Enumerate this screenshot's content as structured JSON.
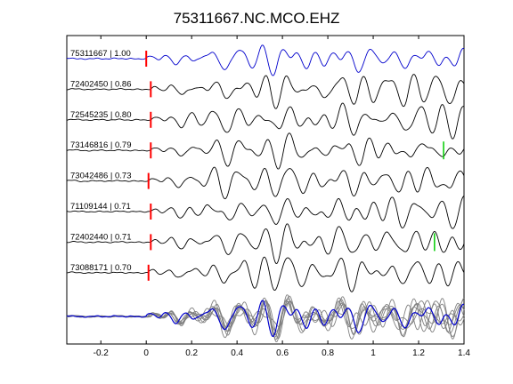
{
  "chart_data": {
    "type": "line",
    "title": "75311667.NC.MCO.EHZ",
    "xlabel": "",
    "ylabel": "",
    "xlim": [
      -0.35,
      1.4
    ],
    "x_ticks": [
      -0.2,
      0,
      0.2,
      0.4,
      0.6,
      0.8,
      1,
      1.2,
      1.4
    ],
    "x_tick_labels": [
      "-0.2",
      "0",
      "0.2",
      "0.4",
      "0.6",
      "0.8",
      "1",
      "1.2",
      "1.4"
    ],
    "grid": false,
    "series": [
      {
        "label": "75311667 | 1.00",
        "color": "#0000cc",
        "pick_time": 0.0,
        "pick_color": "#ff0000"
      },
      {
        "label": "72402450 | 0.86",
        "color": "#000000",
        "pick_time": 0.02,
        "pick_color": "#ff0000"
      },
      {
        "label": "72545235 | 0.80",
        "color": "#000000",
        "pick_time": 0.02,
        "pick_color": "#ff0000"
      },
      {
        "label": "73146816 | 0.79",
        "color": "#000000",
        "pick_time": 0.02,
        "pick_color": "#ff0000",
        "secondary_pick_time": 1.31,
        "secondary_pick_color": "#00cc00"
      },
      {
        "label": "73042486 | 0.73",
        "color": "#000000",
        "pick_time": 0.01,
        "pick_color": "#ff0000"
      },
      {
        "label": "71109144 | 0.71",
        "color": "#000000",
        "pick_time": 0.02,
        "pick_color": "#ff0000"
      },
      {
        "label": "72402440 | 0.71",
        "color": "#000000",
        "pick_time": 0.02,
        "pick_color": "#ff0000",
        "secondary_pick_time": 1.27,
        "secondary_pick_color": "#00cc00"
      },
      {
        "label": "73088171 | 0.70",
        "color": "#000000",
        "pick_time": 0.01,
        "pick_color": "#ff0000"
      }
    ],
    "stack": {
      "main_color": "#0000cc",
      "overlay_color": "#808080"
    }
  }
}
